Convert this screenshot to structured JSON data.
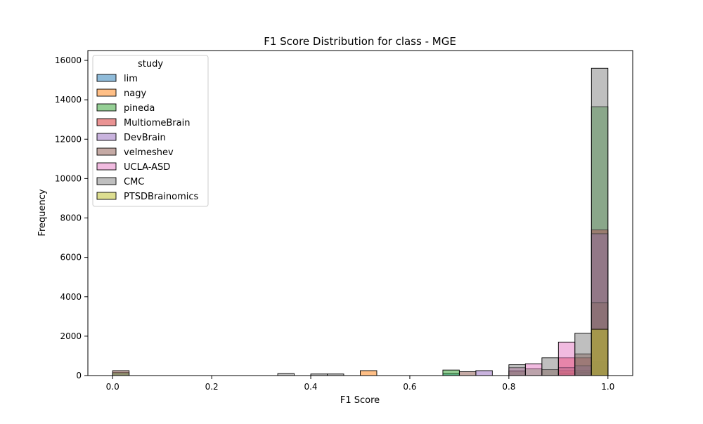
{
  "chart_data": {
    "type": "histogram",
    "title": "F1 Score Distribution for class - MGE",
    "xlabel": "F1 Score",
    "ylabel": "Frequency",
    "xlim": [
      -0.05,
      1.05
    ],
    "ylim": [
      0,
      16500
    ],
    "xticks": [
      0.0,
      0.2,
      0.4,
      0.6,
      0.8,
      1.0
    ],
    "xtick_labels": [
      "0.0",
      "0.2",
      "0.4",
      "0.6",
      "0.8",
      "1.0"
    ],
    "yticks": [
      0,
      2000,
      4000,
      6000,
      8000,
      10000,
      12000,
      14000,
      16000
    ],
    "ytick_labels": [
      "0",
      "2000",
      "4000",
      "6000",
      "8000",
      "10000",
      "12000",
      "14000",
      "16000"
    ],
    "grid": false,
    "legend": {
      "title": "study",
      "position": "top-left"
    },
    "bin_width": 0.0333,
    "bin_starts": [
      0.0,
      0.0333,
      0.0667,
      0.1,
      0.1333,
      0.1667,
      0.2,
      0.2333,
      0.2667,
      0.3,
      0.3333,
      0.3667,
      0.4,
      0.4333,
      0.4667,
      0.5,
      0.5333,
      0.5667,
      0.6,
      0.6333,
      0.6667,
      0.7,
      0.7333,
      0.7667,
      0.8,
      0.8333,
      0.8667,
      0.9,
      0.9333,
      0.9667
    ],
    "series": [
      {
        "name": "lim",
        "color": "#1f77b4",
        "values": [
          0,
          0,
          0,
          0,
          0,
          0,
          0,
          0,
          0,
          0,
          0,
          0,
          0,
          0,
          0,
          0,
          0,
          0,
          0,
          0,
          100,
          0,
          0,
          0,
          0,
          0,
          0,
          100,
          150,
          700
        ]
      },
      {
        "name": "nagy",
        "color": "#ff7f0e",
        "values": [
          0,
          0,
          0,
          0,
          0,
          0,
          0,
          0,
          0,
          0,
          0,
          0,
          0,
          0,
          0,
          250,
          0,
          0,
          0,
          0,
          0,
          0,
          0,
          0,
          0,
          0,
          0,
          250,
          0,
          0
        ]
      },
      {
        "name": "pineda",
        "color": "#2ca02c",
        "values": [
          150,
          0,
          0,
          0,
          0,
          0,
          0,
          0,
          0,
          0,
          0,
          0,
          0,
          0,
          0,
          0,
          0,
          0,
          0,
          0,
          280,
          0,
          0,
          0,
          200,
          350,
          0,
          0,
          250,
          13650
        ]
      },
      {
        "name": "MultiomeBrain",
        "color": "#d62728",
        "values": [
          0,
          0,
          0,
          0,
          0,
          0,
          0,
          0,
          0,
          0,
          0,
          0,
          0,
          0,
          0,
          0,
          0,
          0,
          0,
          0,
          0,
          0,
          0,
          0,
          0,
          0,
          0,
          900,
          900,
          7400
        ]
      },
      {
        "name": "DevBrain",
        "color": "#9467bd",
        "values": [
          0,
          0,
          0,
          0,
          0,
          0,
          0,
          0,
          0,
          0,
          0,
          0,
          0,
          0,
          0,
          0,
          0,
          0,
          0,
          0,
          0,
          0,
          250,
          0,
          0,
          0,
          0,
          0,
          500,
          7200
        ]
      },
      {
        "name": "velmeshev",
        "color": "#8c564b",
        "values": [
          250,
          0,
          0,
          0,
          0,
          0,
          0,
          0,
          0,
          0,
          0,
          0,
          0,
          0,
          0,
          0,
          0,
          0,
          0,
          0,
          0,
          200,
          0,
          0,
          250,
          0,
          300,
          400,
          1100,
          3700
        ]
      },
      {
        "name": "UCLA-ASD",
        "color": "#e377c2",
        "values": [
          0,
          0,
          0,
          0,
          0,
          0,
          0,
          0,
          0,
          0,
          0,
          0,
          0,
          0,
          0,
          0,
          0,
          0,
          0,
          0,
          0,
          0,
          0,
          0,
          400,
          600,
          0,
          1700,
          0,
          0
        ]
      },
      {
        "name": "CMC",
        "color": "#7f7f7f",
        "values": [
          0,
          0,
          0,
          0,
          0,
          0,
          0,
          0,
          0,
          0,
          100,
          0,
          80,
          80,
          0,
          0,
          0,
          0,
          0,
          0,
          0,
          0,
          0,
          0,
          550,
          0,
          900,
          0,
          2150,
          15600
        ]
      },
      {
        "name": "PTSDBrainomics",
        "color": "#bcbd22",
        "values": [
          0,
          0,
          0,
          0,
          0,
          0,
          0,
          0,
          0,
          0,
          0,
          0,
          0,
          0,
          0,
          0,
          0,
          0,
          0,
          0,
          0,
          0,
          0,
          0,
          0,
          0,
          0,
          0,
          0,
          2350
        ]
      }
    ]
  }
}
